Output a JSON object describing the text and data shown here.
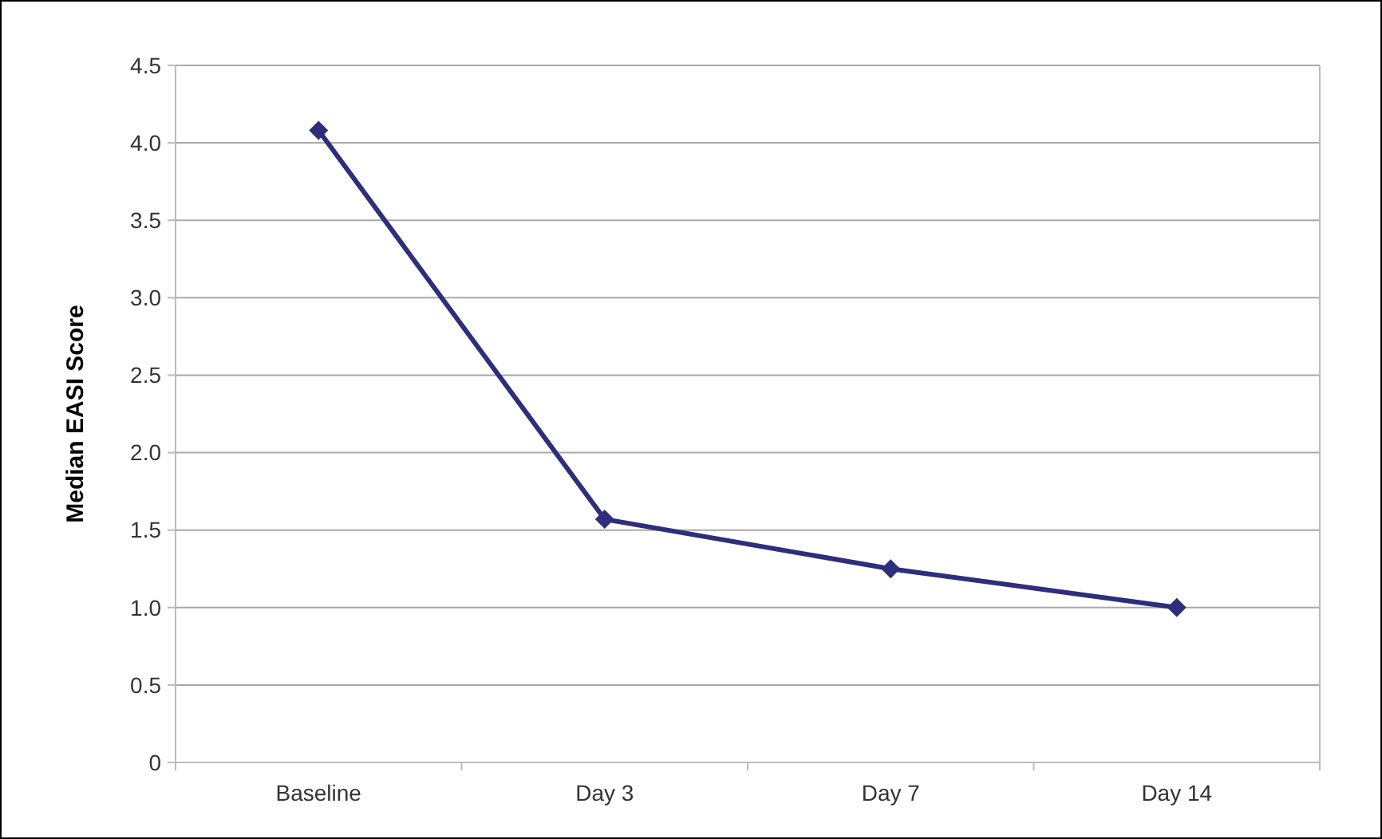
{
  "chart_data": {
    "type": "line",
    "ylabel": "Median EASI Score",
    "categories": [
      "Baseline",
      "Day 3",
      "Day 7",
      "Day 14"
    ],
    "series": [
      {
        "color": "#2e2e7a",
        "values": [
          4.08,
          1.57,
          1.25,
          1.0
        ]
      }
    ],
    "ylim": [
      0,
      4.5
    ],
    "yticks": [
      0,
      {
        "value": 0.5,
        "label": "0.5"
      },
      {
        "value": 1,
        "label": "1.0"
      },
      {
        "value": 1.5,
        "label": "1.5"
      },
      {
        "value": 2,
        "label": "2.0"
      },
      {
        "value": 2.5,
        "label": "2.5"
      },
      {
        "value": 3,
        "label": "3.0"
      },
      {
        "value": 3.5,
        "label": "3.5"
      },
      {
        "value": 4,
        "label": "4.0"
      },
      {
        "value": 4.5,
        "label": "4.5"
      }
    ],
    "grid": "y",
    "marker": "diamond",
    "line_style": "solid"
  }
}
